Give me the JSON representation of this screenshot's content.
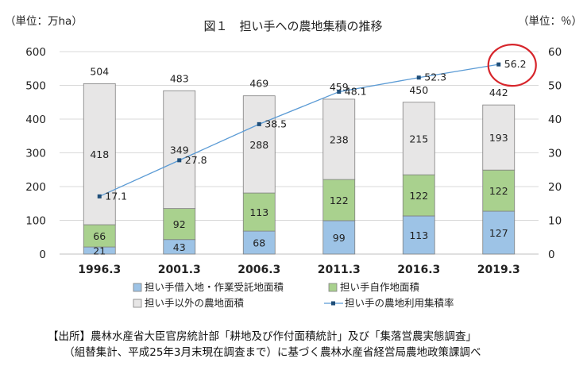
{
  "chart_data": {
    "type": "bar",
    "title": "図１　担い手への農地集積の推移",
    "y_left_unit": "（単位：万ha）",
    "y_right_unit": "（単位：％）",
    "categories": [
      "1996.3",
      "2001.3",
      "2006.3",
      "2011.3",
      "2016.3",
      "2019.3"
    ],
    "ylim_left": [
      0,
      600
    ],
    "yticks_left": [
      "0",
      "100",
      "200",
      "300",
      "400",
      "500",
      "600"
    ],
    "ylim_right": [
      0,
      60
    ],
    "yticks_right": [
      "0",
      "10",
      "20",
      "30",
      "40",
      "50",
      "60"
    ],
    "series": [
      {
        "name": "担い手借入地・作業受託地面積",
        "values": [
          21,
          43,
          68,
          99,
          113,
          127
        ],
        "color": "#9dc3e6"
      },
      {
        "name": "担い手自作地面積",
        "values": [
          66,
          92,
          113,
          122,
          122,
          122
        ],
        "color": "#a9d18e"
      },
      {
        "name": "担い手以外の農地面積",
        "values": [
          418,
          349,
          288,
          238,
          215,
          193
        ],
        "color": "#e7e6e6"
      }
    ],
    "totals": [
      504,
      483,
      469,
      459,
      450,
      442
    ],
    "line_series": {
      "name": "担い手の農地利用集積率",
      "values": [
        17.1,
        27.8,
        38.5,
        48.1,
        52.3,
        56.2
      ],
      "color": "#5b9bd5"
    },
    "grid": true,
    "legend_position": "bottom",
    "highlight_circle_index": 5,
    "highlight_color": "#d7262c"
  },
  "source_lines": [
    "【出所】農林水産省大臣官房統計部「耕地及び作付面積統計」及び「集落営農実態調査」",
    "　　（組替集計、平成25年3月末現在調査まで）に基づく農林水産省経営局農地政策課調べ"
  ]
}
